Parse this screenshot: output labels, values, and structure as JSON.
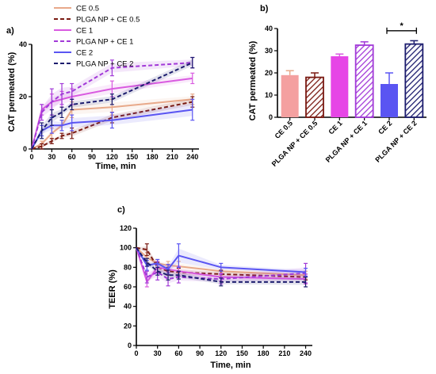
{
  "colors": {
    "CE 0.5": "#e8a98a",
    "PLGA NP + CE 0.5": "#7a1a12",
    "CE 1": "#d95be0",
    "PLGA NP + CE 1": "#a23ad8",
    "CE 2": "#5a55f2",
    "PLGA NP + CE 2": "#1c1c6e"
  },
  "chart_data": [
    {
      "panel": "a)",
      "type": "line",
      "xlabel": "Time, min",
      "ylabel": "CAT permeated (%)",
      "xlim": [
        0,
        245
      ],
      "ylim": [
        0,
        40
      ],
      "xticks": [
        0,
        30,
        60,
        90,
        120,
        150,
        180,
        210,
        240
      ],
      "yticks": [
        0,
        20,
        40
      ],
      "legend_position": "top-left",
      "series": [
        {
          "name": "CE 0.5",
          "style": "solid",
          "x": [
            0,
            15,
            30,
            45,
            60,
            120,
            240
          ],
          "y": [
            0,
            2,
            6,
            9,
            15,
            16,
            19
          ],
          "err": [
            0,
            1,
            2,
            2,
            3,
            3,
            2
          ]
        },
        {
          "name": "PLGA NP + CE 0.5",
          "style": "dashed",
          "x": [
            0,
            15,
            30,
            45,
            60,
            120,
            240
          ],
          "y": [
            0,
            1,
            3,
            5,
            6,
            12,
            18
          ],
          "err": [
            0,
            1,
            1,
            1,
            2,
            2,
            2
          ]
        },
        {
          "name": "CE 1",
          "style": "solid",
          "x": [
            0,
            15,
            30,
            45,
            60,
            120,
            240
          ],
          "y": [
            0,
            15,
            18,
            19,
            20,
            23,
            27
          ],
          "err": [
            0,
            2,
            3,
            3,
            3,
            3,
            2
          ]
        },
        {
          "name": "PLGA NP + CE 1",
          "style": "dashed",
          "x": [
            0,
            15,
            30,
            45,
            60,
            120,
            240
          ],
          "y": [
            0,
            14,
            18,
            21,
            22,
            31,
            33
          ],
          "err": [
            0,
            3,
            5,
            4,
            3,
            3,
            2
          ]
        },
        {
          "name": "CE 2",
          "style": "solid",
          "x": [
            0,
            15,
            30,
            45,
            60,
            120,
            240
          ],
          "y": [
            0,
            7,
            9,
            9,
            10,
            11,
            15
          ],
          "err": [
            0,
            2,
            3,
            2,
            3,
            3,
            4
          ]
        },
        {
          "name": "PLGA NP + CE 2",
          "style": "dashed",
          "x": [
            0,
            15,
            30,
            45,
            60,
            120,
            240
          ],
          "y": [
            0,
            7,
            12,
            14,
            17,
            19,
            33
          ],
          "err": [
            0,
            3,
            3,
            2,
            2,
            2,
            2
          ]
        }
      ]
    },
    {
      "panel": "b)",
      "type": "bar",
      "ylabel": "CAT permeated (%)",
      "ylim": [
        0,
        40
      ],
      "yticks": [
        0,
        10,
        20,
        30,
        40
      ],
      "categories": [
        "CE 0.5",
        "PLGA NP + CE 0.5",
        "CE 1",
        "PLGA NP + CE 1",
        "CE 2",
        "PLGA NP + CE 2"
      ],
      "values": [
        19,
        18,
        27.5,
        32.5,
        15,
        33
      ],
      "err": [
        2,
        2,
        1,
        1.5,
        5,
        1.5
      ],
      "hatched": [
        false,
        true,
        false,
        true,
        false,
        true
      ],
      "significance": {
        "from": "CE 2",
        "to": "PLGA NP + CE 2",
        "label": "*"
      }
    },
    {
      "panel": "c)",
      "type": "line",
      "xlabel": "Time, min",
      "ylabel": "TEER (%)",
      "xlim": [
        0,
        245
      ],
      "ylim": [
        0,
        120
      ],
      "xticks": [
        0,
        30,
        60,
        90,
        120,
        150,
        180,
        210,
        240
      ],
      "yticks": [
        0,
        20,
        40,
        60,
        80,
        100,
        120
      ],
      "series": [
        {
          "name": "CE 0.5",
          "style": "solid",
          "x": [
            0,
            15,
            30,
            45,
            60,
            120,
            240
          ],
          "y": [
            100,
            90,
            84,
            82,
            81,
            76,
            72
          ],
          "err": [
            0,
            5,
            4,
            4,
            5,
            4,
            4
          ]
        },
        {
          "name": "PLGA NP + CE 0.5",
          "style": "dashed",
          "x": [
            0,
            15,
            30,
            45,
            60,
            120,
            240
          ],
          "y": [
            100,
            98,
            80,
            76,
            75,
            73,
            70
          ],
          "err": [
            0,
            6,
            5,
            4,
            4,
            4,
            3
          ]
        },
        {
          "name": "CE 1",
          "style": "solid",
          "x": [
            0,
            15,
            30,
            45,
            60,
            120,
            240
          ],
          "y": [
            100,
            65,
            80,
            78,
            76,
            70,
            68
          ],
          "err": [
            0,
            5,
            6,
            5,
            5,
            4,
            5
          ]
        },
        {
          "name": "PLGA NP + CE 1",
          "style": "dashed",
          "x": [
            0,
            15,
            30,
            45,
            60,
            120,
            240
          ],
          "y": [
            100,
            70,
            75,
            68,
            70,
            68,
            74
          ],
          "err": [
            0,
            6,
            8,
            7,
            6,
            5,
            10
          ]
        },
        {
          "name": "CE 2",
          "style": "solid",
          "x": [
            0,
            15,
            30,
            45,
            60,
            120,
            240
          ],
          "y": [
            100,
            82,
            84,
            78,
            92,
            80,
            75
          ],
          "err": [
            0,
            5,
            4,
            5,
            12,
            4,
            4
          ]
        },
        {
          "name": "PLGA NP + CE 2",
          "style": "dashed",
          "x": [
            0,
            15,
            30,
            45,
            60,
            120,
            240
          ],
          "y": [
            100,
            85,
            76,
            72,
            72,
            65,
            65
          ],
          "err": [
            0,
            4,
            4,
            5,
            4,
            4,
            5
          ]
        }
      ]
    }
  ]
}
